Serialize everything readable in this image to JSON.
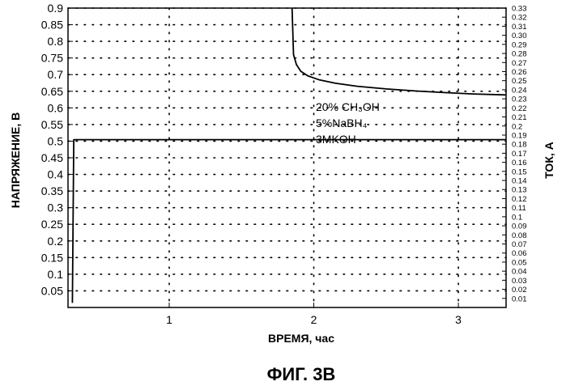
{
  "chart_data": {
    "type": "line",
    "title": "",
    "caption": "ФИГ. 3В",
    "xlabel": "ВРЕМЯ, час",
    "ylabel_left": "НАПРЯЖЕНИЕ, В",
    "ylabel_right": "ТОК, А",
    "xlim": [
      0.3,
      3.33
    ],
    "xticks": [
      "1",
      "2",
      "3"
    ],
    "xtick_values": [
      1,
      2,
      3
    ],
    "ylim_left": [
      0,
      0.9
    ],
    "yticks_left": [
      "0.05",
      "0.1",
      "0.15",
      "0.2",
      "0.25",
      "0.3",
      "0.35",
      "0.4",
      "0.45",
      "0.5",
      "0.55",
      "0.6",
      "0.65",
      "0.7",
      "0.75",
      "0.8",
      "0.85",
      "0.9"
    ],
    "ylim_right": [
      0,
      0.33
    ],
    "yticks_right": [
      "0.01",
      "0.02",
      "0.03",
      "0.04",
      "0.05",
      "0.06",
      "0.07",
      "0.08",
      "0.09",
      "0.1",
      "0.11",
      "0.12",
      "0.13",
      "0.14",
      "0.15",
      "0.16",
      "0.17",
      "0.18",
      "0.19",
      "0.2",
      "0.21",
      "0.22",
      "0.23",
      "0.24",
      "0.25",
      "0.26",
      "0.27",
      "0.28",
      "0.29",
      "0.30",
      "0.31",
      "0.32",
      "0.33"
    ],
    "grid": true,
    "annotation_lines": [
      "20% CH₃OH",
      "5%NaBH₄",
      "3MKOH"
    ],
    "series": [
      {
        "axis": "left",
        "x": [
          1.85,
          1.86,
          1.88,
          1.91,
          1.96,
          2.04,
          2.15,
          2.3,
          2.5,
          2.7,
          2.9,
          3.1,
          3.33
        ],
        "y": [
          0.9,
          0.76,
          0.73,
          0.71,
          0.696,
          0.684,
          0.674,
          0.665,
          0.657,
          0.651,
          0.646,
          0.642,
          0.639
        ]
      },
      {
        "axis": "right",
        "x": [
          0.33,
          0.34,
          0.35,
          3.33
        ],
        "y": [
          0.005,
          0.185,
          0.185,
          0.185
        ]
      }
    ]
  }
}
